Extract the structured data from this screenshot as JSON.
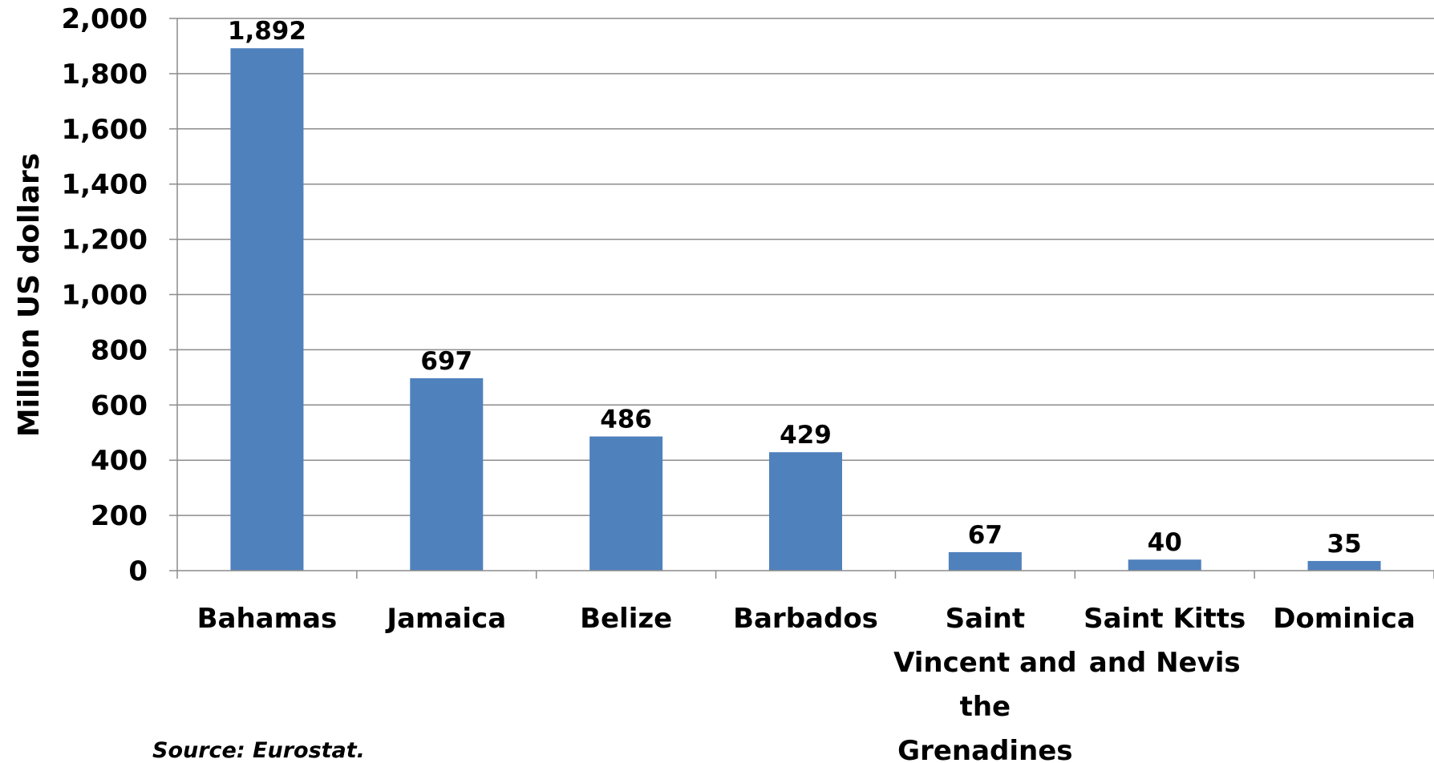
{
  "chart_data": {
    "type": "bar",
    "title": "",
    "xlabel": "",
    "ylabel": "Million US dollars",
    "ylim": [
      0,
      2000
    ],
    "yticks": [
      0,
      200,
      400,
      600,
      800,
      1000,
      1200,
      1400,
      1600,
      1800,
      2000
    ],
    "ytick_labels": [
      "0",
      "200",
      "400",
      "600",
      "800",
      "1,000",
      "1,200",
      "1,400",
      "1,600",
      "1,800",
      "2,000"
    ],
    "grid": true,
    "legend": "none",
    "bar_color": "#4F81BD",
    "categories": [
      [
        "Bahamas"
      ],
      [
        "Jamaica"
      ],
      [
        "Belize"
      ],
      [
        "Barbados"
      ],
      [
        "Saint",
        "Vincent and",
        "the",
        "Grenadines"
      ],
      [
        "Saint Kitts",
        "and Nevis"
      ],
      [
        "Dominica"
      ]
    ],
    "values": [
      1892,
      697,
      486,
      429,
      67,
      40,
      35
    ],
    "data_labels": [
      "1,892",
      "697",
      "486",
      "429",
      "67",
      "40",
      "35"
    ]
  },
  "source_note": "Source: Eurostat."
}
